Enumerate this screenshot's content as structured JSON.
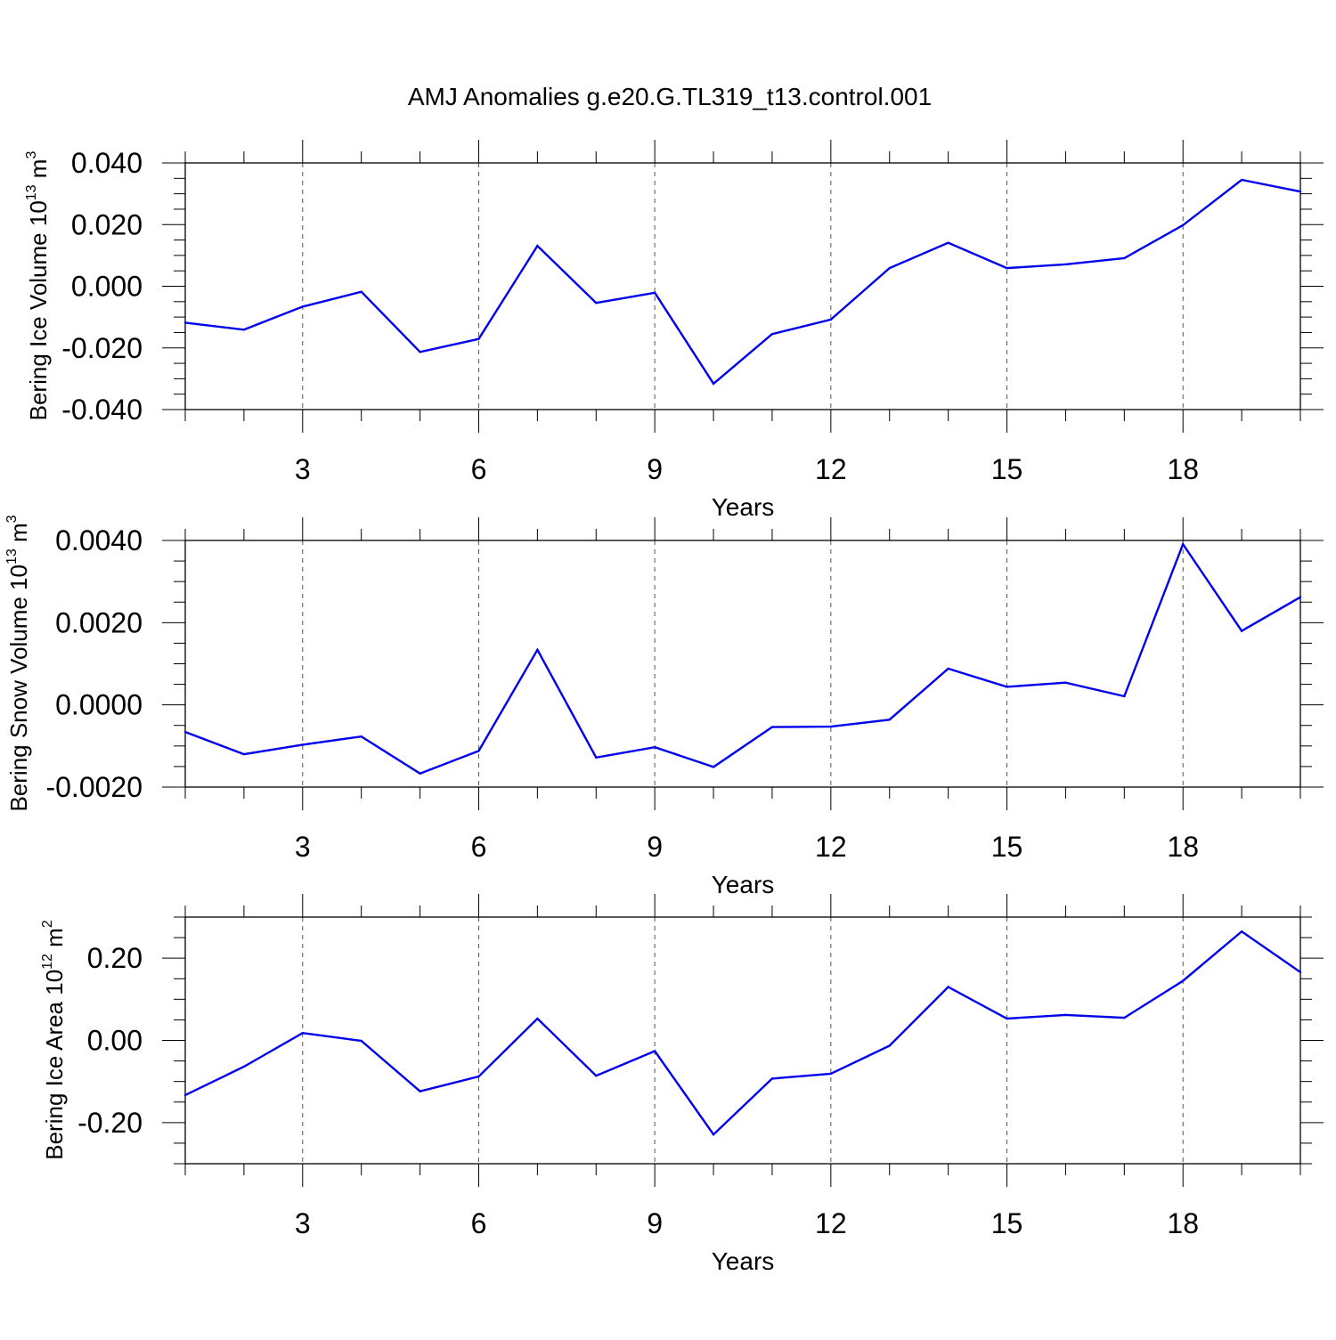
{
  "title": "AMJ Anomalies g.e20.G.TL319_t13.control.001",
  "chart_data": [
    {
      "type": "line",
      "ylabel_main": "Bering Ice Volume 10",
      "ylabel_exp": "13",
      "ylabel_unit": " m",
      "ylabel_unit_exp": "3",
      "xlabel": "Years",
      "xlim": [
        1,
        20
      ],
      "ylim": [
        -0.04,
        0.04
      ],
      "yticks": [
        -0.04,
        -0.02,
        0.0,
        0.02,
        0.04
      ],
      "ytick_labels": [
        "-0.040",
        "-0.020",
        "0.000",
        "0.020",
        "0.040"
      ],
      "xticks": [
        3,
        6,
        9,
        12,
        15,
        18
      ],
      "xtick_labels": [
        "3",
        "6",
        "9",
        "12",
        "15",
        "18"
      ],
      "line_color": "#0000ee",
      "series": [
        {
          "name": "Bering Ice Volume",
          "x": [
            1,
            2,
            3,
            4,
            5,
            6,
            7,
            8,
            9,
            10,
            11,
            12,
            13,
            14,
            15,
            16,
            17,
            18,
            19,
            20
          ],
          "values": [
            -0.0118,
            -0.0141,
            -0.0066,
            -0.0018,
            -0.0213,
            -0.0171,
            0.0131,
            -0.0054,
            -0.0021,
            -0.0316,
            -0.0155,
            -0.0108,
            0.0059,
            0.0141,
            0.0059,
            0.0071,
            0.0091,
            0.0198,
            0.0345,
            0.0307
          ]
        }
      ]
    },
    {
      "type": "line",
      "ylabel_main": "Bering Snow Volume 10",
      "ylabel_exp": "13",
      "ylabel_unit": " m",
      "ylabel_unit_exp": "3",
      "xlabel": "Years",
      "xlim": [
        1,
        20
      ],
      "ylim": [
        -0.002,
        0.004
      ],
      "yticks": [
        -0.002,
        0.0,
        0.002,
        0.004
      ],
      "ytick_labels": [
        "-0.0020",
        "0.0000",
        "0.0020",
        "0.0040"
      ],
      "xticks": [
        3,
        6,
        9,
        12,
        15,
        18
      ],
      "xtick_labels": [
        "3",
        "6",
        "9",
        "12",
        "15",
        "18"
      ],
      "line_color": "#0000ee",
      "series": [
        {
          "name": "Bering Snow Volume",
          "x": [
            1,
            2,
            3,
            4,
            5,
            6,
            7,
            8,
            9,
            10,
            11,
            12,
            13,
            14,
            15,
            16,
            17,
            18,
            19,
            20
          ],
          "values": [
            -0.00066,
            -0.0012,
            -0.00097,
            -0.00077,
            -0.00167,
            -0.00112,
            0.00134,
            -0.00128,
            -0.00103,
            -0.00151,
            -0.00054,
            -0.00053,
            -0.00036,
            0.00088,
            0.00044,
            0.00054,
            0.00021,
            0.00391,
            0.0018,
            0.00262
          ]
        }
      ]
    },
    {
      "type": "line",
      "ylabel_main": "Bering Ice Area 10",
      "ylabel_exp": "12",
      "ylabel_unit": " m",
      "ylabel_unit_exp": "2",
      "xlabel": "Years",
      "xlim": [
        1,
        20
      ],
      "ylim": [
        -0.3,
        0.3
      ],
      "yticks": [
        -0.2,
        0.0,
        0.2
      ],
      "ytick_labels": [
        "-0.20",
        "0.00",
        "0.20"
      ],
      "xticks": [
        3,
        6,
        9,
        12,
        15,
        18
      ],
      "xtick_labels": [
        "3",
        "6",
        "9",
        "12",
        "15",
        "18"
      ],
      "line_color": "#0000ee",
      "series": [
        {
          "name": "Bering Ice Area",
          "x": [
            1,
            2,
            3,
            4,
            5,
            6,
            7,
            8,
            9,
            10,
            11,
            12,
            13,
            14,
            15,
            16,
            17,
            18,
            19,
            20
          ],
          "values": [
            -0.133,
            -0.064,
            0.018,
            -0.001,
            -0.124,
            -0.088,
            0.053,
            -0.086,
            -0.026,
            -0.229,
            -0.093,
            -0.081,
            -0.013,
            0.13,
            0.053,
            0.062,
            0.055,
            0.145,
            0.265,
            0.166
          ]
        }
      ]
    }
  ]
}
